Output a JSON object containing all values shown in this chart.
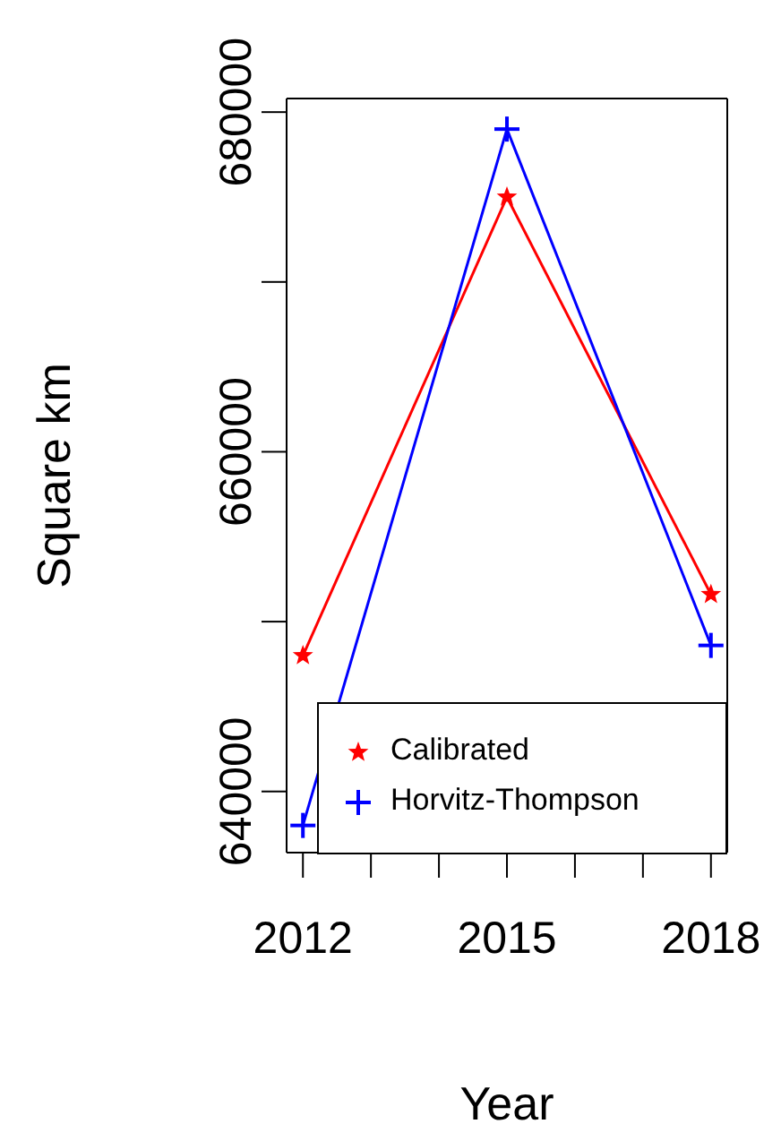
{
  "chart_data": {
    "type": "line",
    "xlabel": "Year",
    "ylabel": "Square km",
    "x": [
      2012,
      2015,
      2018
    ],
    "xlim": [
      2011.76,
      2018.24
    ],
    "xticks": [
      2012,
      {
        "value": 2013,
        "label": null
      },
      {
        "value": 2014,
        "label": null
      },
      2015,
      {
        "value": 2016,
        "label": null
      },
      {
        "value": 2017,
        "label": null
      },
      2018
    ],
    "ylim": [
      636400,
      680800
    ],
    "yticks": [
      640000,
      {
        "value": 650000,
        "label": null
      },
      660000,
      {
        "value": 670000,
        "label": null
      },
      680000
    ],
    "series": [
      {
        "name": "Calibrated",
        "color": "#ff0000",
        "marker": "star",
        "values": [
          648000,
          675000,
          651600
        ]
      },
      {
        "name": "Horvitz-Thompson",
        "color": "#0000ff",
        "marker": "cross",
        "values": [
          638000,
          679000,
          648600
        ]
      }
    ],
    "legend": "bottom right",
    "grid": false
  }
}
